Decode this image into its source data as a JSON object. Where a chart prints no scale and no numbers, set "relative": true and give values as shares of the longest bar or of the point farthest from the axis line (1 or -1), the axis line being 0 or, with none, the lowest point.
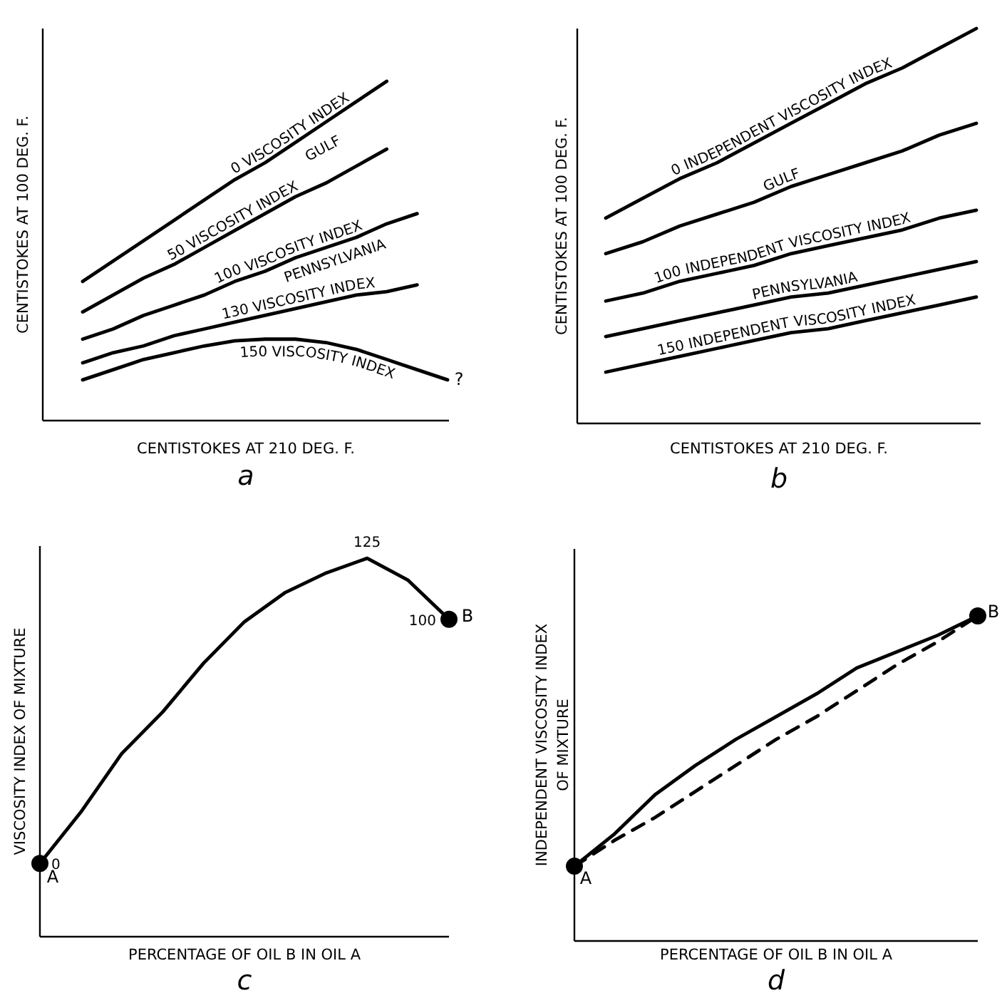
{
  "chart_data": [
    {
      "type": "line",
      "relative": true,
      "xlabel": "CENTISTOKES AT 210 DEG. F.",
      "ylabel": "CENTISTOKES AT 100 DEG. F.",
      "categories": [
        null,
        null,
        null,
        null,
        null,
        null,
        null,
        null,
        null,
        null,
        null,
        null,
        null
      ],
      "series": [
        {
          "name": "0 VISCOSITY INDEX",
          "color": "#000000",
          "values": [
            0.41,
            0.47,
            0.53,
            0.59,
            0.65,
            0.71,
            0.76,
            0.82,
            0.88,
            0.94,
            1.0,
            null,
            null
          ]
        },
        {
          "name": "50 VISCOSITY INDEX",
          "color": "#000000",
          "values": [
            0.32,
            0.37,
            0.42,
            0.46,
            0.51,
            0.56,
            0.61,
            0.66,
            0.7,
            0.75,
            0.8,
            null,
            null
          ]
        },
        {
          "name": "100 VISCOSITY INDEX",
          "color": "#000000",
          "values": [
            0.24,
            0.27,
            0.31,
            0.34,
            0.37,
            0.41,
            0.44,
            0.48,
            0.51,
            0.54,
            0.58,
            0.61,
            null
          ]
        },
        {
          "name": "130 VISCOSITY INDEX",
          "color": "#000000",
          "values": [
            0.17,
            0.2,
            0.22,
            0.25,
            0.27,
            0.29,
            0.31,
            0.33,
            0.35,
            0.37,
            0.38,
            0.4,
            null
          ]
        },
        {
          "name": "150 VISCOSITY INDEX",
          "color": "#000000",
          "values": [
            0.12,
            0.15,
            0.18,
            0.2,
            0.22,
            0.235,
            0.24,
            0.24,
            0.23,
            0.21,
            0.18,
            0.15,
            0.12
          ]
        }
      ],
      "annotations": [
        "a",
        "GULF",
        "PENNSYLVANIA",
        "?"
      ]
    },
    {
      "type": "line",
      "relative": true,
      "xlabel": "CENTISTOKES AT 210 DEG. F.",
      "ylabel": "CENTISTOKES AT 100 DEG. F.",
      "categories": [
        null,
        null,
        null,
        null,
        null,
        null,
        null,
        null,
        null,
        null,
        null
      ],
      "series": [
        {
          "name": "0 INDEPENDENT VISCOSITY INDEX",
          "color": "#000000",
          "values": [
            0.52,
            0.57,
            0.62,
            0.66,
            0.71,
            0.76,
            0.81,
            0.86,
            0.9,
            0.95,
            1.0
          ]
        },
        {
          "name": "GULF",
          "color": "#000000",
          "values": [
            0.43,
            0.46,
            0.5,
            0.53,
            0.56,
            0.6,
            0.63,
            0.66,
            0.69,
            0.73,
            0.76
          ]
        },
        {
          "name": "100 INDEPENDENT VISCOSITY INDEX",
          "color": "#000000",
          "values": [
            0.31,
            0.33,
            0.36,
            0.38,
            0.4,
            0.43,
            0.45,
            0.47,
            0.49,
            0.52,
            0.54
          ]
        },
        {
          "name": "PENNSYLVANIA",
          "color": "#000000",
          "values": [
            0.22,
            0.24,
            0.26,
            0.28,
            0.3,
            0.32,
            0.33,
            0.35,
            0.37,
            0.39,
            0.41
          ]
        },
        {
          "name": "150 INDEPENDENT VISCOSITY INDEX",
          "color": "#000000",
          "values": [
            0.13,
            0.15,
            0.17,
            0.19,
            0.21,
            0.23,
            0.24,
            0.26,
            0.28,
            0.3,
            0.32
          ]
        }
      ],
      "annotations": [
        "b"
      ]
    },
    {
      "type": "line",
      "ylim": [
        -30,
        130
      ],
      "xlabel": "PERCENTAGE OF OIL B IN OIL A",
      "ylabel": "VISCOSITY INDEX OF MIXTURE",
      "categories": [
        null,
        null,
        null,
        null,
        null,
        null,
        null,
        null,
        null,
        null,
        null
      ],
      "series": [
        {
          "color": "#000000",
          "values": [
            0,
            21,
            45,
            62,
            82,
            99,
            111,
            119,
            125,
            116,
            100
          ],
          "value_labels": [
            "0",
            null,
            null,
            null,
            null,
            null,
            null,
            null,
            "125",
            null,
            "100"
          ]
        }
      ],
      "annotations": [
        "c",
        "A",
        "B"
      ]
    },
    {
      "type": "line",
      "relative": true,
      "xlabel": "PERCENTAGE OF OIL B IN OIL A",
      "ylabel": "INDEPENDENT VISCOSITY INDEX OF MIXTURE",
      "categories": [
        null,
        null,
        null,
        null,
        null,
        null,
        null,
        null,
        null,
        null,
        null
      ],
      "series": [
        {
          "color": "#000000",
          "values": [
            0.23,
            0.33,
            0.45,
            0.54,
            0.62,
            0.69,
            0.76,
            0.84,
            0.89,
            0.94,
            1.0
          ]
        },
        {
          "color": "#000000",
          "line_style": "dashed",
          "values": [
            0.23,
            0.31,
            0.38,
            0.46,
            0.54,
            0.62,
            0.69,
            0.77,
            0.85,
            0.92,
            1.0
          ]
        }
      ],
      "annotations": [
        "d",
        "A",
        "B"
      ]
    }
  ]
}
